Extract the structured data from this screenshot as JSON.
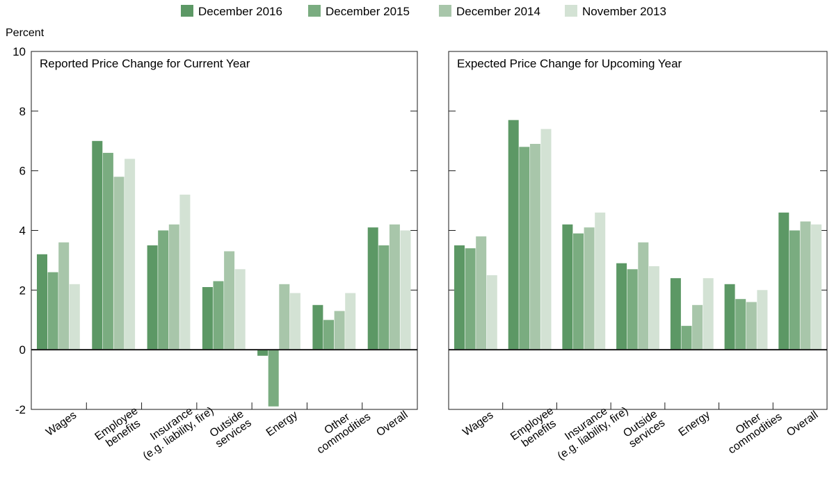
{
  "legend": [
    {
      "label": "December 2016",
      "color": "#5c9865"
    },
    {
      "label": "December 2015",
      "color": "#7aac80"
    },
    {
      "label": "December 2014",
      "color": "#a8c6aa"
    },
    {
      "label": "November 2013",
      "color": "#d3e2d4"
    }
  ],
  "y_axis_unit": "Percent",
  "chart_data": [
    {
      "type": "bar",
      "title": "Reported Price Change for Current Year",
      "ylabel": "Percent",
      "ylim": [
        -2,
        10
      ],
      "yticks": [
        "-2",
        "0",
        "2",
        "4",
        "6",
        "8",
        "10"
      ],
      "categories": [
        [
          "Wages"
        ],
        [
          "Employee",
          "benefits"
        ],
        [
          "Insurance",
          "(e.g. liability, fire)"
        ],
        [
          "Outside",
          "services"
        ],
        [
          "Energy"
        ],
        [
          "Other",
          "commodities"
        ],
        [
          "Overall"
        ]
      ],
      "series": [
        {
          "name": "December 2016",
          "values": [
            3.2,
            7.0,
            3.5,
            2.1,
            -0.2,
            1.5,
            4.1
          ]
        },
        {
          "name": "December 2015",
          "values": [
            2.6,
            6.6,
            4.0,
            2.3,
            -1.9,
            1.0,
            3.5
          ]
        },
        {
          "name": "December 2014",
          "values": [
            3.6,
            5.8,
            4.2,
            3.3,
            2.2,
            1.3,
            4.2
          ]
        },
        {
          "name": "November 2013",
          "values": [
            2.2,
            6.4,
            5.2,
            2.7,
            1.9,
            1.9,
            4.0
          ]
        }
      ]
    },
    {
      "type": "bar",
      "title": "Expected Price Change for Upcoming Year",
      "ylabel": "Percent",
      "ylim": [
        -2,
        10
      ],
      "categories": [
        [
          "Wages"
        ],
        [
          "Employee",
          "benefits"
        ],
        [
          "Insurance",
          "(e.g. liability, fire)"
        ],
        [
          "Outside",
          "services"
        ],
        [
          "Energy"
        ],
        [
          "Other",
          "commodities"
        ],
        [
          "Overall"
        ]
      ],
      "series": [
        {
          "name": "December 2016",
          "values": [
            3.5,
            7.7,
            4.2,
            2.9,
            2.4,
            2.2,
            4.6
          ]
        },
        {
          "name": "December 2015",
          "values": [
            3.4,
            6.8,
            3.9,
            2.7,
            0.8,
            1.7,
            4.0
          ]
        },
        {
          "name": "December 2014",
          "values": [
            3.8,
            6.9,
            4.1,
            3.6,
            1.5,
            1.6,
            4.3
          ]
        },
        {
          "name": "November 2013",
          "values": [
            2.5,
            7.4,
            4.6,
            2.8,
            2.4,
            2.0,
            4.2
          ]
        }
      ]
    }
  ]
}
